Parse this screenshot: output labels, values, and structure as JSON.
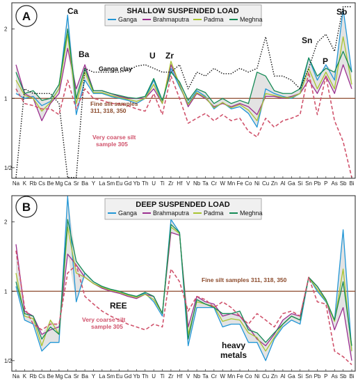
{
  "chart_data": [
    {
      "type": "line",
      "panel_label": "A",
      "title": "SHALLOW SUSPENDED LOAD",
      "y_scale": "log2",
      "ylim": [
        0.45,
        2.6
      ],
      "y_ticks": [
        {
          "value": 0.5,
          "label": "1/2"
        },
        {
          "value": 1,
          "label": "1"
        },
        {
          "value": 2,
          "label": "2"
        }
      ],
      "reference_value": 1,
      "categories": [
        "Na",
        "K",
        "Rb",
        "Cs",
        "Be",
        "Mg",
        "Ca",
        "Sr",
        "Ba",
        "Y",
        "La",
        "Sm",
        "Eu",
        "Gd",
        "Yb",
        "Th",
        "U",
        "Ti",
        "Zr",
        "Hf",
        "V",
        "Nb",
        "Ta",
        "Cr",
        "W",
        "Mn",
        "Fe",
        "Co",
        "Ni",
        "Cu",
        "Zn",
        "Al",
        "Ga",
        "Si",
        "Sn",
        "Pb",
        "P",
        "As",
        "Sb",
        "Bi"
      ],
      "series": [
        {
          "name": "Ganga",
          "color": "#2196d6",
          "values": [
            1.05,
            1.0,
            1.02,
            0.93,
            0.97,
            1.1,
            2.3,
            0.85,
            1.2,
            1.05,
            1.05,
            1.02,
            1.0,
            0.98,
            0.95,
            1.0,
            1.2,
            0.95,
            1.35,
            1.12,
            0.95,
            1.08,
            1.02,
            0.9,
            0.96,
            0.9,
            0.92,
            0.86,
            0.75,
            1.1,
            1.05,
            1.02,
            1.0,
            1.05,
            1.5,
            1.2,
            1.4,
            1.2,
            2.45,
            1.3
          ]
        },
        {
          "name": "Brahmaputra",
          "color": "#9b2f8f",
          "values": [
            1.4,
            1.05,
            1.0,
            0.8,
            0.95,
            1.05,
            1.65,
            1.1,
            1.4,
            1.08,
            1.08,
            1.05,
            1.02,
            1.0,
            1.0,
            1.0,
            1.1,
            0.95,
            1.4,
            1.15,
            0.92,
            1.05,
            1.0,
            0.92,
            0.95,
            0.92,
            0.95,
            0.92,
            0.85,
            1.02,
            1.02,
            1.0,
            1.02,
            1.05,
            1.2,
            1.05,
            1.25,
            1.05,
            1.4,
            1.1
          ]
        },
        {
          "name": "Padma",
          "color": "#a8c430",
          "values": [
            1.2,
            1.03,
            1.0,
            0.88,
            0.96,
            1.1,
            1.9,
            0.95,
            1.3,
            1.06,
            1.06,
            1.03,
            1.01,
            0.99,
            0.97,
            1.0,
            1.15,
            0.95,
            1.45,
            1.14,
            0.94,
            1.06,
            1.01,
            0.91,
            0.96,
            0.91,
            0.94,
            0.89,
            0.8,
            1.05,
            1.03,
            1.01,
            1.01,
            1.05,
            1.35,
            1.1,
            1.3,
            1.1,
            1.85,
            1.15
          ]
        },
        {
          "name": "Meghna",
          "color": "#148a55",
          "values": [
            1.3,
            1.05,
            1.08,
            0.98,
            1.0,
            1.15,
            2.0,
            1.0,
            1.35,
            1.08,
            1.08,
            1.05,
            1.03,
            1.01,
            1.0,
            1.02,
            1.22,
            0.98,
            1.3,
            1.18,
            0.98,
            1.1,
            1.06,
            0.95,
            1.0,
            0.95,
            0.98,
            0.95,
            1.3,
            1.25,
            1.08,
            1.05,
            1.05,
            1.1,
            1.5,
            1.25,
            1.35,
            1.3,
            1.6,
            1.3
          ]
        },
        {
          "name": "Ganga clay",
          "color": "#111111",
          "dash": "dot",
          "values": [
            0.35,
            1.1,
            1.05,
            1.05,
            1.05,
            0.95,
            0.45,
            0.35,
            1.35,
            1.3,
            1.3,
            1.3,
            1.3,
            1.32,
            1.38,
            1.4,
            1.35,
            1.3,
            1.3,
            1.4,
            1.1,
            1.3,
            1.25,
            1.35,
            1.28,
            1.28,
            1.35,
            1.3,
            1.35,
            1.85,
            1.25,
            1.25,
            1.2,
            1.1,
            1.35,
            1.75,
            1.9,
            1.6,
            2.5,
            2.5
          ]
        },
        {
          "name": "Fine silt samples 311, 318, 350",
          "color": "#8b4a2b",
          "values": [
            1,
            1,
            1,
            1,
            1,
            1,
            1,
            1,
            1,
            1,
            1,
            1,
            1,
            1,
            1,
            1,
            1,
            1,
            1,
            1,
            1,
            1,
            1,
            1,
            1,
            1,
            1,
            1,
            1,
            1,
            1,
            1,
            1,
            1,
            1,
            1,
            1,
            1,
            1,
            1
          ]
        },
        {
          "name": "Very coarse silt sample 305",
          "color": "#d0526b",
          "dash": "dash",
          "values": [
            1.1,
            0.95,
            0.93,
            0.9,
            0.9,
            0.85,
            1.2,
            0.9,
            1.1,
            1.0,
            0.98,
            0.95,
            0.95,
            0.93,
            0.9,
            0.88,
            1.05,
            0.85,
            1.25,
            1.0,
            0.78,
            0.82,
            0.86,
            0.8,
            0.85,
            0.8,
            0.82,
            0.72,
            0.68,
            0.82,
            0.75,
            0.8,
            0.82,
            0.85,
            1.3,
            0.85,
            1.25,
            0.8,
            0.65,
            0.45
          ]
        }
      ],
      "annotations": {
        "ca": "Ca",
        "ba": "Ba",
        "u": "U",
        "zr": "Zr",
        "sn": "Sn",
        "p": "P",
        "sb": "Sb",
        "ganga_clay": "Ganga clay",
        "fine_silt_1": "Fine silt samples",
        "fine_silt_2": "311, 318, 350",
        "coarse_silt_1": "Very coarse silt",
        "coarse_silt_2": "sample 305"
      }
    },
    {
      "type": "line",
      "panel_label": "B",
      "title": "DEEP SUSPENDED LOAD",
      "y_scale": "log2",
      "ylim": [
        0.45,
        2.6
      ],
      "y_ticks": [
        {
          "value": 0.5,
          "label": "1/2"
        },
        {
          "value": 1,
          "label": "1"
        },
        {
          "value": 2,
          "label": "2"
        }
      ],
      "reference_value": 1,
      "categories": [
        "Na",
        "K",
        "Rb",
        "Cs",
        "Be",
        "Mg",
        "Ca",
        "Sr",
        "Ba",
        "Y",
        "La",
        "Sm",
        "Eu",
        "Gd",
        "Yb",
        "Th",
        "U",
        "Ti",
        "Zr",
        "Hf",
        "V",
        "Nb",
        "Ta",
        "Cr",
        "W",
        "Mn",
        "Fe",
        "Co",
        "Ni",
        "Cu",
        "Zn",
        "Al",
        "Ga",
        "Si",
        "Sn",
        "Pb",
        "P",
        "As",
        "Sb",
        "Bi"
      ],
      "series": [
        {
          "name": "Ganga",
          "color": "#2196d6",
          "values": [
            1.05,
            0.75,
            0.72,
            0.55,
            0.6,
            0.6,
            2.6,
            0.9,
            1.2,
            1.1,
            1.05,
            1.02,
            1.0,
            0.97,
            0.95,
            0.98,
            0.9,
            0.78,
            2.05,
            1.8,
            0.58,
            0.85,
            0.85,
            0.85,
            0.7,
            0.72,
            0.72,
            0.6,
            0.6,
            0.5,
            0.62,
            0.7,
            0.75,
            0.72,
            1.15,
            1.0,
            0.9,
            0.75,
            1.85,
            0.55
          ]
        },
        {
          "name": "Brahmaputra",
          "color": "#9b2f8f",
          "values": [
            1.6,
            0.82,
            0.78,
            0.65,
            0.68,
            0.7,
            1.45,
            1.3,
            1.15,
            1.08,
            1.03,
            1.0,
            0.98,
            0.95,
            0.93,
            0.97,
            0.95,
            0.8,
            1.8,
            1.75,
            0.7,
            0.95,
            0.9,
            0.88,
            0.78,
            0.8,
            0.78,
            0.7,
            0.62,
            0.58,
            0.65,
            0.75,
            0.8,
            0.78,
            1.15,
            1.05,
            0.92,
            0.68,
            0.85,
            0.5
          ]
        },
        {
          "name": "Padma",
          "color": "#a8c430",
          "values": [
            1.2,
            0.78,
            0.76,
            0.58,
            0.75,
            0.65,
            1.9,
            1.2,
            1.15,
            1.08,
            1.04,
            1.01,
            0.99,
            0.96,
            0.94,
            0.97,
            0.92,
            0.8,
            1.9,
            1.78,
            0.65,
            0.9,
            0.88,
            0.86,
            0.74,
            0.76,
            0.75,
            0.66,
            0.63,
            0.55,
            0.63,
            0.72,
            0.78,
            0.75,
            1.15,
            1.02,
            0.91,
            0.74,
            1.25,
            0.55
          ]
        },
        {
          "name": "Meghna",
          "color": "#148a55",
          "values": [
            1.1,
            0.8,
            0.78,
            0.62,
            0.7,
            0.65,
            2.05,
            1.35,
            1.2,
            1.1,
            1.05,
            1.02,
            1.0,
            0.97,
            0.95,
            0.99,
            0.95,
            0.8,
            1.95,
            1.8,
            0.62,
            0.92,
            0.88,
            0.85,
            0.8,
            0.8,
            0.82,
            0.68,
            0.66,
            0.6,
            0.66,
            0.72,
            0.78,
            0.75,
            1.15,
            1.05,
            0.92,
            0.75,
            1.1,
            0.58
          ]
        },
        {
          "name": "Fine silt samples 311, 318, 350",
          "color": "#8b4a2b",
          "values": [
            1,
            1,
            1,
            1,
            1,
            1,
            1,
            1,
            1,
            1,
            1,
            1,
            1,
            1,
            1,
            1,
            1,
            1,
            1,
            1,
            1,
            1,
            1,
            1,
            1,
            1,
            1,
            1,
            1,
            1,
            1,
            1,
            1,
            1,
            1,
            1,
            1,
            1,
            1,
            1
          ]
        },
        {
          "name": "Very coarse silt sample 305",
          "color": "#d0526b",
          "dash": "dash",
          "values": [
            1.5,
            0.85,
            0.72,
            0.68,
            0.72,
            0.72,
            1.2,
            1.3,
            0.95,
            0.88,
            0.82,
            0.78,
            0.75,
            0.72,
            0.7,
            0.68,
            0.72,
            0.7,
            1.25,
            1.1,
            0.82,
            0.95,
            0.92,
            0.85,
            0.9,
            0.85,
            0.78,
            0.72,
            0.8,
            0.75,
            0.7,
            0.8,
            0.82,
            0.78,
            1.15,
            0.9,
            0.88,
            0.55,
            0.52,
            0.48
          ]
        }
      ],
      "annotations": {
        "fine_silt": "Fine silt samples 311, 318, 350",
        "ree": "REE",
        "coarse_silt_1": "Very coarse silt",
        "coarse_silt_2": "sample 305",
        "heavy_1": "heavy",
        "heavy_2": "metals"
      }
    }
  ]
}
